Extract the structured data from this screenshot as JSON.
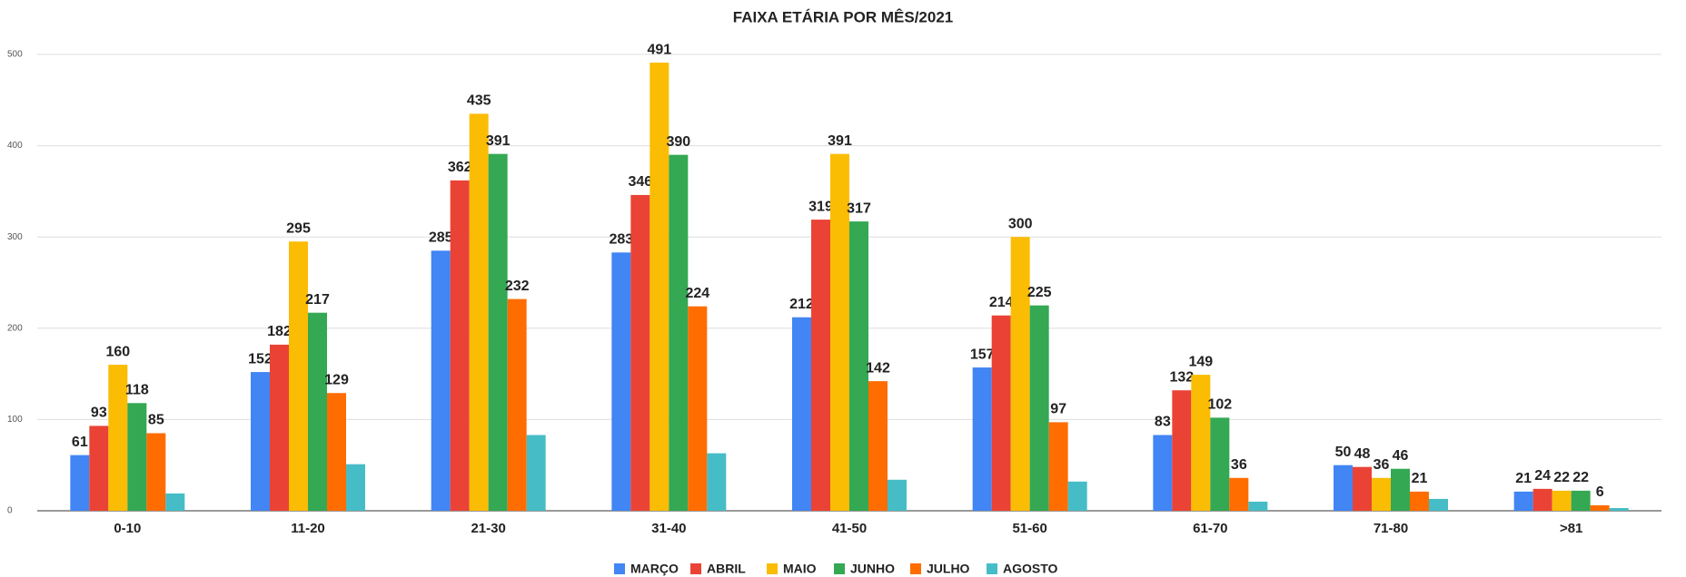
{
  "chart_data": {
    "type": "bar",
    "title": "FAIXA ETÁRIA POR MÊS/2021",
    "categories": [
      "0-10",
      "11-20",
      "21-30",
      "31-40",
      "41-50",
      "51-60",
      "61-70",
      "71-80",
      ">81"
    ],
    "series": [
      {
        "name": "MARÇO",
        "color": "#4285f4",
        "data_labels": true,
        "values": [
          61,
          152,
          285,
          283,
          212,
          157,
          83,
          50,
          21
        ]
      },
      {
        "name": "ABRIL",
        "color": "#ea4335",
        "data_labels": true,
        "values": [
          93,
          182,
          362,
          346,
          319,
          214,
          132,
          48,
          24
        ]
      },
      {
        "name": "MAIO",
        "color": "#fbbc04",
        "data_labels": true,
        "values": [
          160,
          295,
          435,
          491,
          391,
          300,
          149,
          36,
          22
        ]
      },
      {
        "name": "JUNHO",
        "color": "#34a853",
        "data_labels": true,
        "values": [
          118,
          217,
          391,
          390,
          317,
          225,
          102,
          46,
          22
        ]
      },
      {
        "name": "JULHO",
        "color": "#ff6d01",
        "data_labels": true,
        "values": [
          85,
          129,
          232,
          224,
          142,
          97,
          36,
          21,
          6
        ]
      },
      {
        "name": "AGOSTO",
        "color": "#46bdc6",
        "data_labels": false,
        "values": [
          19,
          51,
          83,
          63,
          34,
          32,
          10,
          13,
          3
        ]
      }
    ],
    "ylim": [
      0,
      500
    ],
    "yticks": [
      0,
      100,
      200,
      300,
      400,
      500
    ],
    "grid": true,
    "legend": "bottom"
  }
}
